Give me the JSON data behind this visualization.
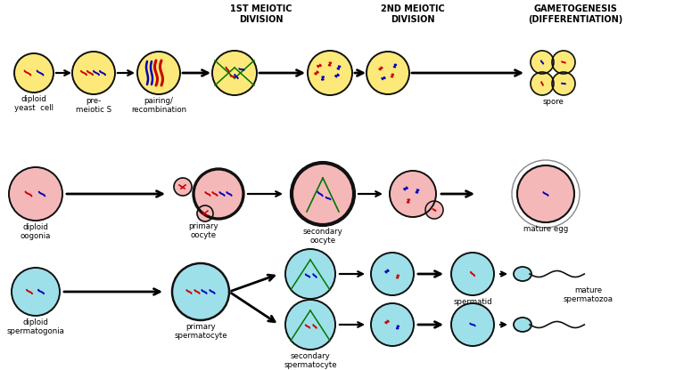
{
  "bg_color": "#ffffff",
  "yeast_color": "#fce97a",
  "oocyte_color": "#f5b8b8",
  "sperm_color": "#9de0ea",
  "red": "#cc0000",
  "blue": "#0000bb",
  "green": "#007700",
  "black": "#111111",
  "header1": "1ST MEIOTIC\nDIVISION",
  "header2": "2ND MEIOTIC\nDIVISION",
  "header3": "GAMETOGENESIS\n(DIFFERENTIATION)",
  "figw": 7.85,
  "figh": 4.16,
  "dpi": 100
}
